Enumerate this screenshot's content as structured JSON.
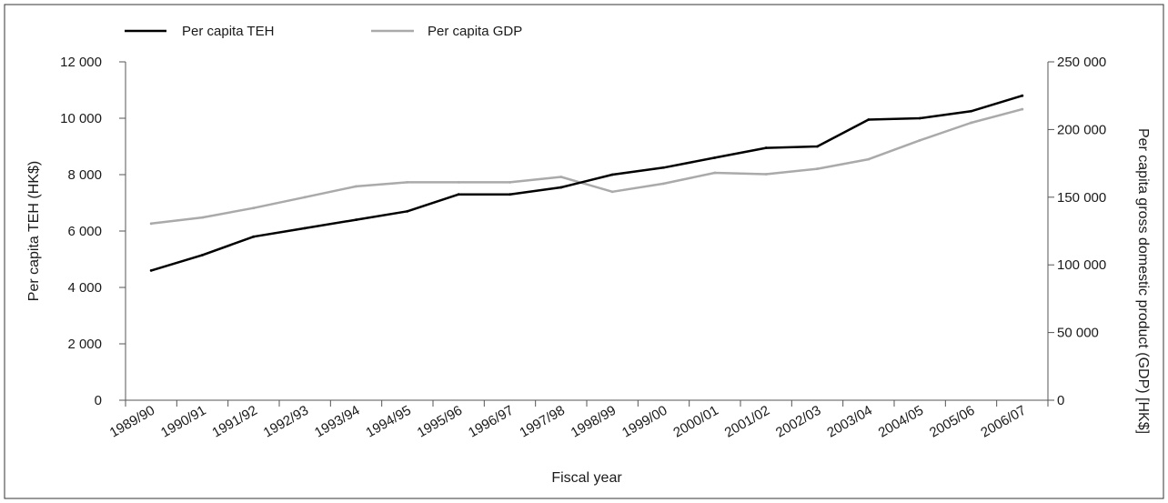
{
  "chart_data": {
    "type": "line",
    "categories": [
      "1989/90",
      "1990/91",
      "1991/92",
      "1992/93",
      "1993/94",
      "1994/95",
      "1995/96",
      "1996/97",
      "1997/98",
      "1998/99",
      "1999/00",
      "2000/01",
      "2001/02",
      "2002/03",
      "2003/04",
      "2004/05",
      "2005/06",
      "2006/07"
    ],
    "series": [
      {
        "name": "Per capita TEH",
        "axis": "left",
        "color": "#000000",
        "values": [
          4600,
          5150,
          5800,
          6100,
          6400,
          6700,
          7300,
          7300,
          7550,
          8000,
          8250,
          8600,
          8950,
          9000,
          9950,
          10000,
          10250,
          10800
        ]
      },
      {
        "name": "Per capita GDP",
        "axis": "right",
        "color": "#aaaaaa",
        "values": [
          130500,
          135000,
          142000,
          150000,
          158000,
          161000,
          161000,
          161000,
          165000,
          154000,
          160000,
          168000,
          167000,
          171000,
          178000,
          192000,
          205000,
          215000
        ]
      }
    ],
    "xlabel": "Fiscal year",
    "ylabel_left": "Per capita TEH (HK$)",
    "ylabel_right": "Per capita gross domestic product (GDP) [HK$]",
    "ylim_left": [
      0,
      12000
    ],
    "ylim_right": [
      0,
      250000
    ],
    "yticks_left": [
      "0",
      "2 000",
      "4 000",
      "6 000",
      "8 000",
      "10 000",
      "12 000"
    ],
    "yticks_right": [
      "0",
      "50 000",
      "100 000",
      "150 000",
      "200 000",
      "250 000"
    ],
    "grid": false,
    "legend_position": "top-left"
  }
}
